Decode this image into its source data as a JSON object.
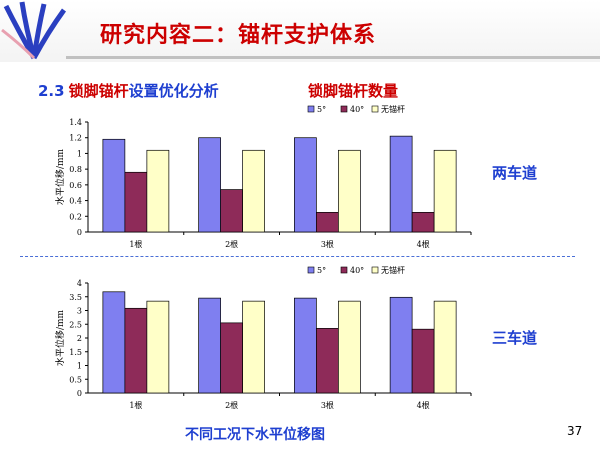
{
  "header": {
    "title": "研究内容二：锚杆支护体系"
  },
  "section": {
    "number": "2.3",
    "heading_key": "锁脚锚杆",
    "heading_rest": "设置优化分析",
    "subheading": "锁脚锚杆数量"
  },
  "labels": {
    "top_chart": "两车道",
    "bottom_chart": "三车道"
  },
  "footer": {
    "caption": "不同工况下水平位移图",
    "page_number": "37"
  },
  "colors": {
    "series_5deg": "#7f7ff0",
    "series_40deg": "#8e2b59",
    "series_none": "#ffffc8",
    "title_red": "#cc0000",
    "heading_blue": "#1e3fd0"
  },
  "chart_data": [
    {
      "type": "bar",
      "categories": [
        "1根",
        "2根",
        "3根",
        "4根"
      ],
      "ylabel": "水平位移/mm",
      "ylim": [
        0,
        1.4
      ],
      "yticks": [
        "0",
        "0.2",
        "0.4",
        "0.6",
        "0.8",
        "1",
        "1.2",
        "1.4"
      ],
      "legend_position": "top-right",
      "grid": false,
      "series": [
        {
          "name": "5°",
          "values": [
            1.18,
            1.2,
            1.2,
            1.22
          ]
        },
        {
          "name": "40°",
          "values": [
            0.76,
            0.54,
            0.25,
            0.25
          ]
        },
        {
          "name": "无锚杆",
          "values": [
            1.04,
            1.04,
            1.04,
            1.04
          ]
        }
      ]
    },
    {
      "type": "bar",
      "categories": [
        "1根",
        "2根",
        "3根",
        "4根"
      ],
      "ylabel": "水平位移/mm",
      "ylim": [
        0,
        4
      ],
      "yticks": [
        "0",
        "0.5",
        "1",
        "1.5",
        "2",
        "2.5",
        "3",
        "3.5",
        "4"
      ],
      "legend_position": "top-right",
      "grid": false,
      "series": [
        {
          "name": "5°",
          "values": [
            3.68,
            3.45,
            3.45,
            3.48
          ]
        },
        {
          "name": "40°",
          "values": [
            3.08,
            2.55,
            2.35,
            2.32
          ]
        },
        {
          "name": "无锚杆",
          "values": [
            3.34,
            3.34,
            3.34,
            3.34
          ]
        }
      ]
    }
  ]
}
